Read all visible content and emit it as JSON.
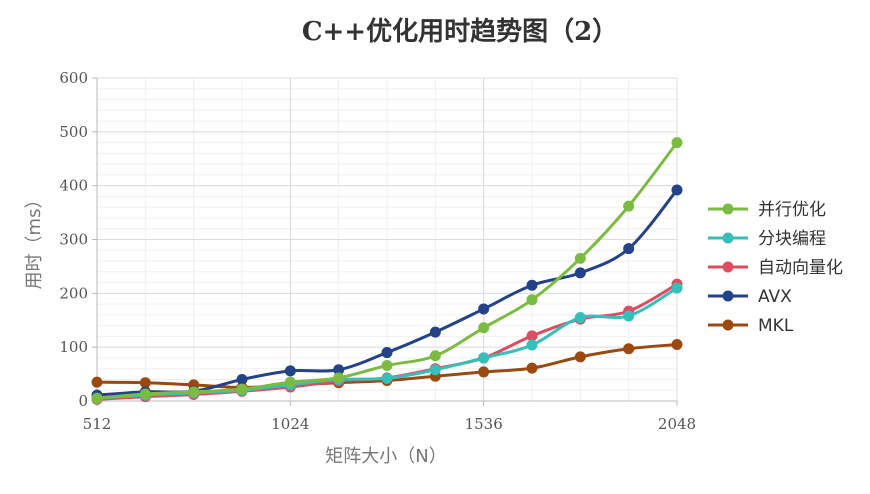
{
  "chart_data": {
    "type": "line",
    "title": "C++优化用时趋势图（2）",
    "xlabel": "矩阵大小（N）",
    "ylabel": "用时（ms）",
    "x": [
      512,
      640,
      768,
      896,
      1024,
      1152,
      1280,
      1408,
      1536,
      1664,
      1792,
      1920,
      2048
    ],
    "xticks": [
      512,
      1024,
      1536,
      2048
    ],
    "xtick_labels": [
      "512",
      "1024",
      "1536",
      "2048"
    ],
    "xlim": [
      512,
      2048
    ],
    "ylim": [
      0,
      600
    ],
    "yticks": [
      0,
      100,
      200,
      300,
      400,
      500,
      600
    ],
    "ytick_labels": [
      "0",
      "100",
      "200",
      "300",
      "400",
      "500",
      "600"
    ],
    "grid": true,
    "legend_position": "right",
    "series": [
      {
        "name": "并行优化",
        "color": "#7cbb42",
        "values": [
          5,
          13,
          17,
          22,
          35,
          43,
          66,
          84,
          136,
          188,
          265,
          362,
          480
        ]
      },
      {
        "name": "分块编程",
        "color": "#35bfb8",
        "values": [
          5,
          11,
          15,
          20,
          30,
          40,
          42,
          58,
          80,
          104,
          155,
          158,
          210
        ]
      },
      {
        "name": "自动向量化",
        "color": "#e04b60",
        "values": [
          3,
          8,
          12,
          18,
          26,
          37,
          43,
          60,
          80,
          121,
          152,
          167,
          217
        ]
      },
      {
        "name": "AVX",
        "color": "#234288",
        "values": [
          11,
          17,
          18,
          40,
          56,
          58,
          90,
          128,
          171,
          215,
          238,
          283,
          392
        ]
      },
      {
        "name": "MKL",
        "color": "#9a4a10",
        "values": [
          35,
          34,
          30,
          25,
          30,
          34,
          38,
          46,
          54,
          61,
          82,
          97,
          105
        ]
      }
    ]
  }
}
